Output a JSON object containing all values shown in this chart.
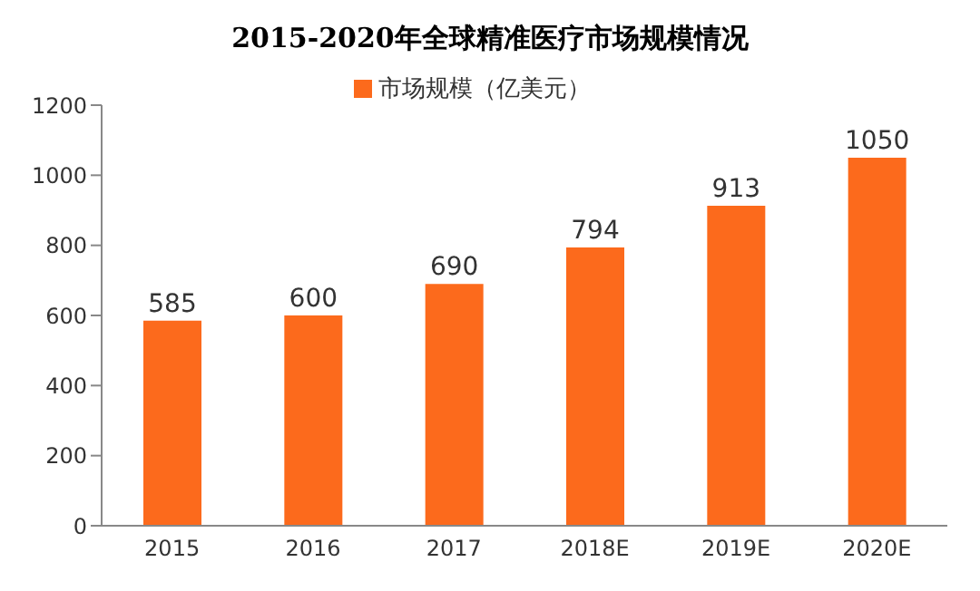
{
  "chart_data": {
    "type": "bar",
    "title": "2015-2020年全球精准医疗市场规模情况",
    "categories": [
      "2015",
      "2016",
      "2017",
      "2018E",
      "2019E",
      "2020E"
    ],
    "series": [
      {
        "name": "市场规模（亿美元）",
        "color": "#fc6a1c",
        "values": [
          585,
          600,
          690,
          794,
          913,
          1050
        ]
      }
    ],
    "ylim": [
      0,
      1200
    ],
    "yticks": [
      0,
      200,
      400,
      600,
      800,
      1000,
      1200
    ],
    "legend": "top",
    "data_labels": true
  }
}
